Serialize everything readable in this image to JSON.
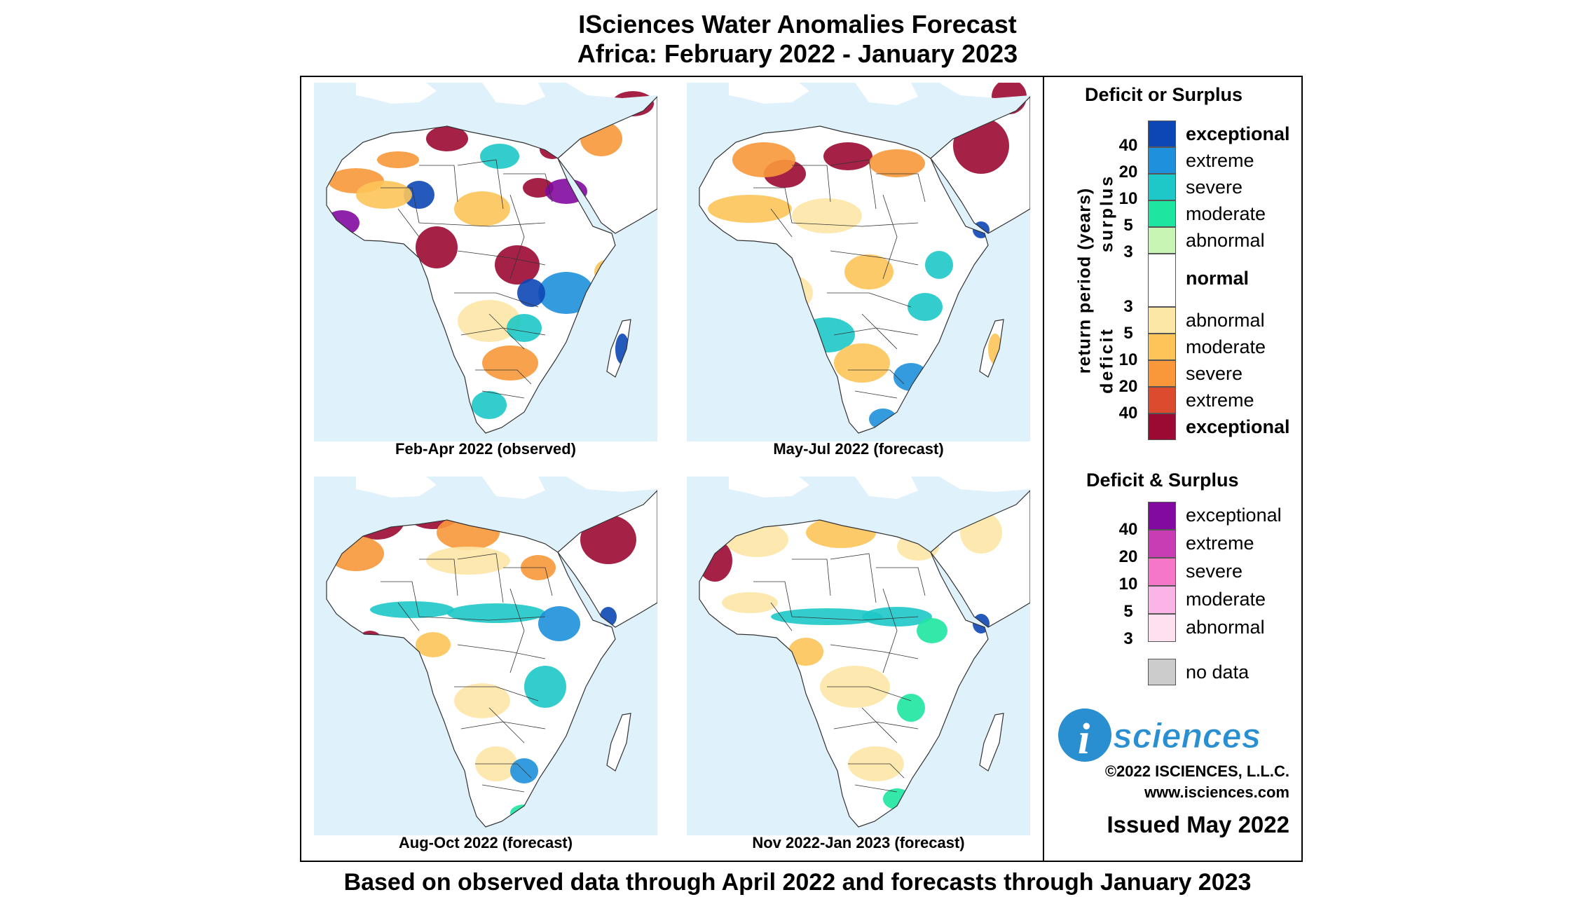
{
  "title": {
    "line1": "ISciences Water Anomalies Forecast",
    "line2": "Africa: February 2022 - January 2023"
  },
  "panels": [
    {
      "caption": "Feb-Apr 2022 (observed)"
    },
    {
      "caption": "May-Jul 2022 (forecast)"
    },
    {
      "caption": "Aug-Oct 2022 (forecast)"
    },
    {
      "caption": "Nov 2022-Jan 2023 (forecast)"
    }
  ],
  "legend": {
    "deficit_or_surplus": {
      "title": "Deficit or Surplus",
      "axis_label": "return period (years)",
      "surplus_label": "surplus",
      "deficit_label": "deficit",
      "surplus": [
        {
          "label": "exceptional",
          "color": "#0d47b5"
        },
        {
          "label": "extreme",
          "color": "#1e90dc"
        },
        {
          "label": "severe",
          "color": "#1ec8c8"
        },
        {
          "label": "moderate",
          "color": "#1ee6a0"
        },
        {
          "label": "abnormal",
          "color": "#c8f5b4"
        }
      ],
      "normal": {
        "label": "normal",
        "color": "#ffffff"
      },
      "deficit": [
        {
          "label": "abnormal",
          "color": "#fde7a6"
        },
        {
          "label": "moderate",
          "color": "#fdc45a"
        },
        {
          "label": "severe",
          "color": "#f8983a"
        },
        {
          "label": "extreme",
          "color": "#dc4b2d"
        },
        {
          "label": "exceptional",
          "color": "#9b0a32"
        }
      ],
      "surplus_numbers": [
        "40",
        "20",
        "10",
        "5",
        "3"
      ],
      "deficit_numbers": [
        "3",
        "5",
        "10",
        "20",
        "40"
      ]
    },
    "deficit_and_surplus": {
      "title": "Deficit & Surplus",
      "items": [
        {
          "label": "exceptional",
          "color": "#820aa0"
        },
        {
          "label": "extreme",
          "color": "#c83cb4"
        },
        {
          "label": "severe",
          "color": "#f578c8"
        },
        {
          "label": "moderate",
          "color": "#fab4e6"
        },
        {
          "label": "abnormal",
          "color": "#fde1f0"
        }
      ],
      "numbers": [
        "40",
        "20",
        "10",
        "5",
        "3"
      ]
    },
    "no_data": {
      "label": "no data",
      "color": "#cccccc"
    }
  },
  "logo": {
    "text": "sciences",
    "letter": "i"
  },
  "copyright": "©2022 ISCIENCES, L.L.C.",
  "website": "www.isciences.com",
  "issued": "Issued May 2022",
  "footer": "Based on observed data through April 2022 and forecasts through January 2023",
  "colors": {
    "ocean": "#dff1fb",
    "land": "#ffffff",
    "border": "#333333",
    "frame": "#000000"
  }
}
